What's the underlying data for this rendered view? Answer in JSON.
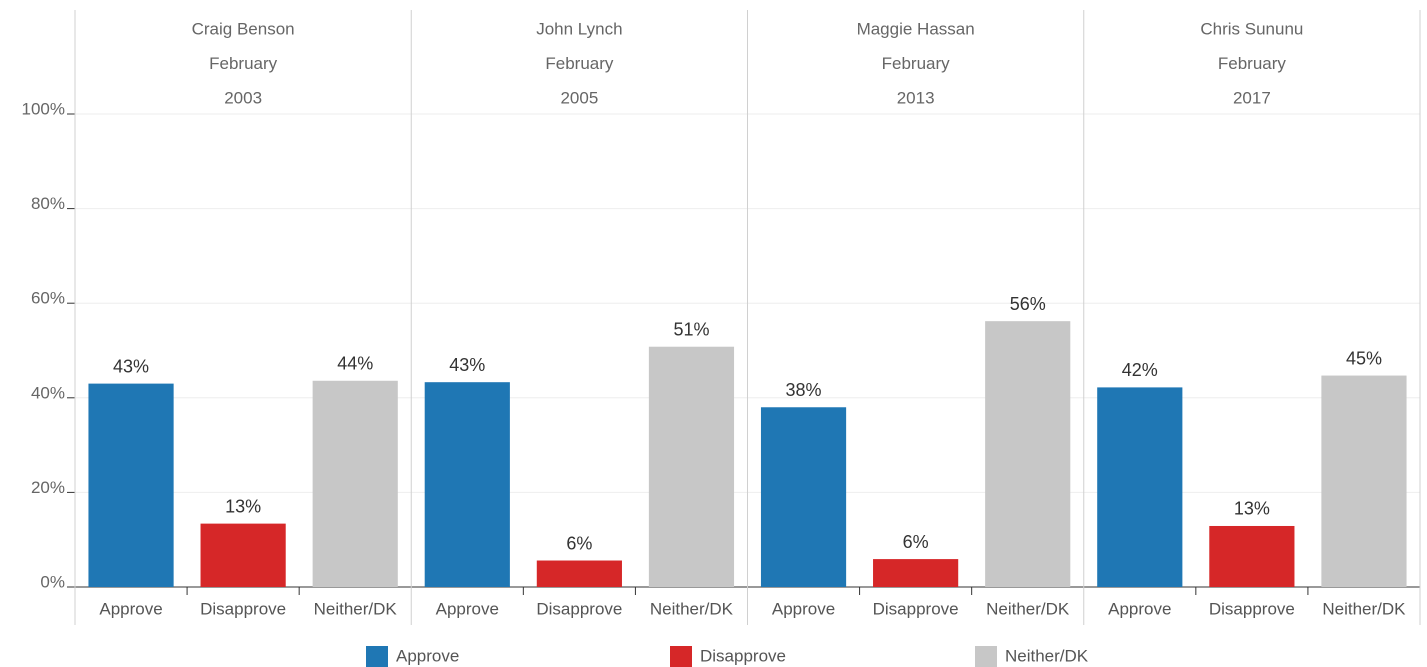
{
  "chart_data": {
    "type": "bar",
    "categories": [
      "Approve",
      "Disapprove",
      "Neither/DK"
    ],
    "colors": [
      "#1f77b4",
      "#d62728",
      "#c7c7c7"
    ],
    "ylim": [
      0,
      100
    ],
    "yticks": [
      {
        "value": 0,
        "label": "0%"
      },
      {
        "value": 20,
        "label": "20%"
      },
      {
        "value": 40,
        "label": "40%"
      },
      {
        "value": 60,
        "label": "60%"
      },
      {
        "value": 80,
        "label": "80%"
      },
      {
        "value": 100,
        "label": "100%"
      }
    ],
    "grid": true,
    "legend": "bottom",
    "panels": [
      {
        "title": [
          "Craig Benson",
          "February",
          "2003"
        ],
        "values": [
          43,
          13.4,
          43.6
        ],
        "value_labels": [
          "43%",
          "13%",
          "44%"
        ]
      },
      {
        "title": [
          "John Lynch",
          "February",
          "2005"
        ],
        "values": [
          43.3,
          5.6,
          50.8
        ],
        "value_labels": [
          "43%",
          "6%",
          "51%"
        ]
      },
      {
        "title": [
          "Maggie Hassan",
          "February",
          "2013"
        ],
        "values": [
          38,
          5.9,
          56.2
        ],
        "value_labels": [
          "38%",
          "6%",
          "56%"
        ]
      },
      {
        "title": [
          "Chris Sununu",
          "February",
          "2017"
        ],
        "values": [
          42.2,
          12.9,
          44.7
        ],
        "value_labels": [
          "42%",
          "13%",
          "45%"
        ]
      }
    ]
  }
}
